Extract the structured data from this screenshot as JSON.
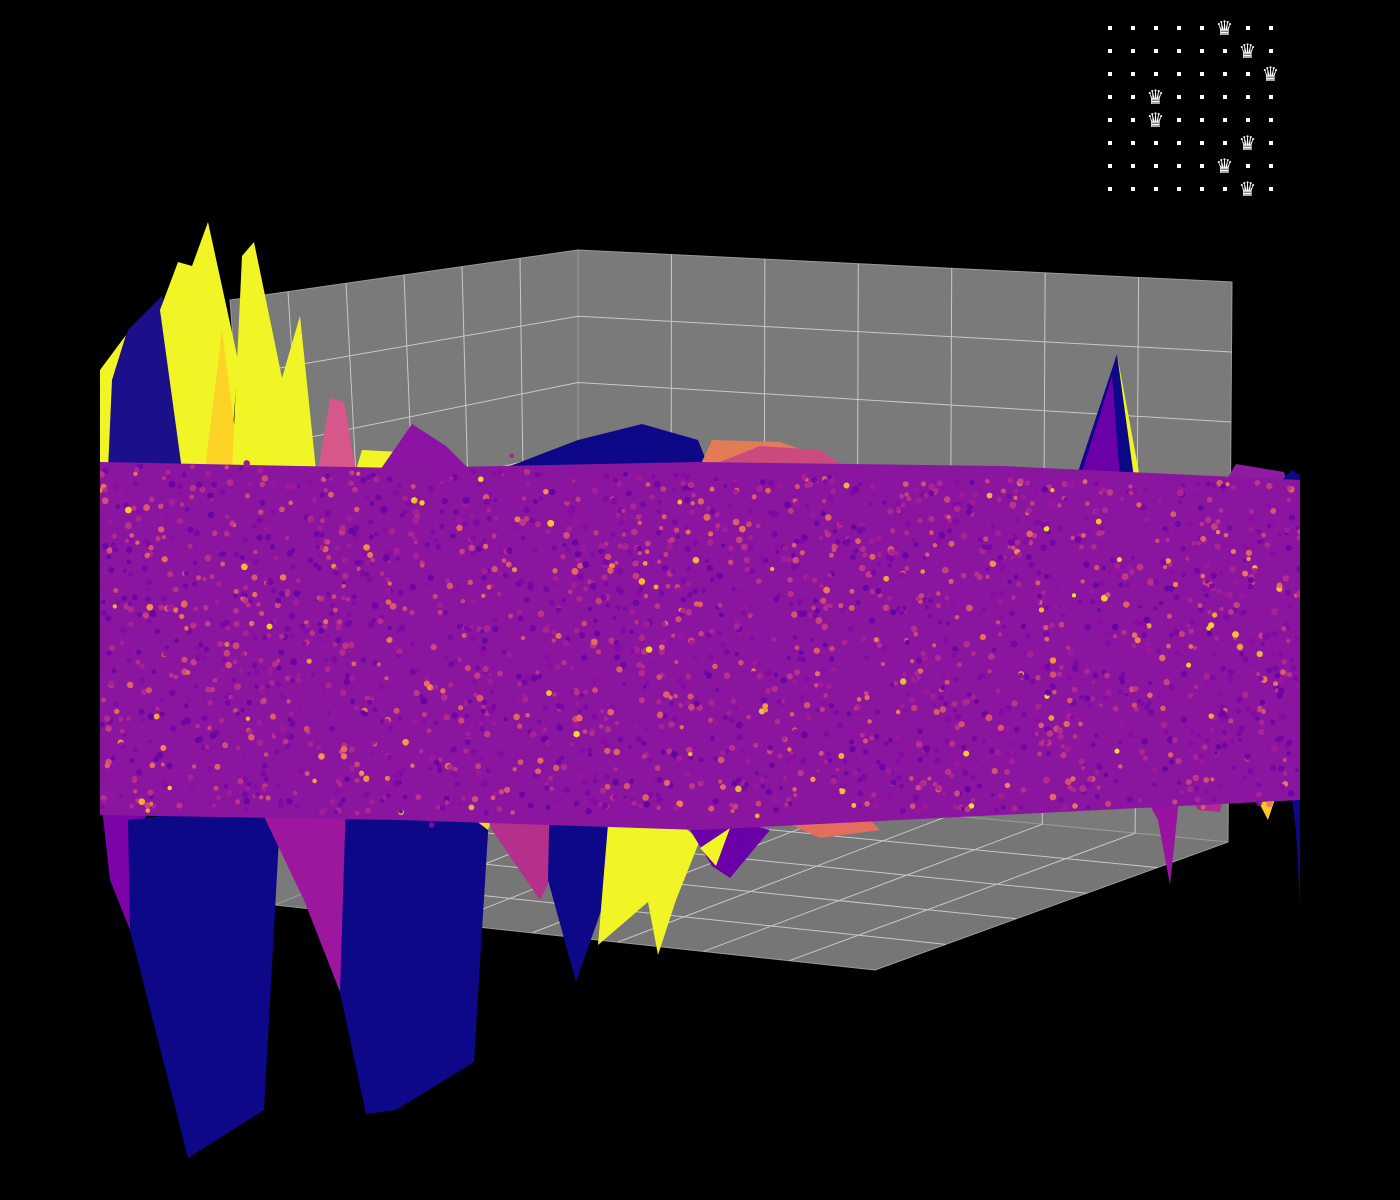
{
  "chart_data": {
    "type": "3d-surface-scatter",
    "title": "",
    "xlabel": "",
    "ylabel": "",
    "zlabel": "",
    "grid": true,
    "colormap": "plasma",
    "colors": {
      "background": "#000000",
      "pane": "#7a7a7a",
      "floor": "#767676",
      "gridline": "#c8c8c8"
    }
  },
  "board": {
    "size": 8,
    "queen_columns": [
      5,
      6,
      7,
      2,
      2,
      6,
      5,
      6
    ],
    "queen_icon": "chess-queen-icon",
    "queen_glyph": "♛"
  }
}
